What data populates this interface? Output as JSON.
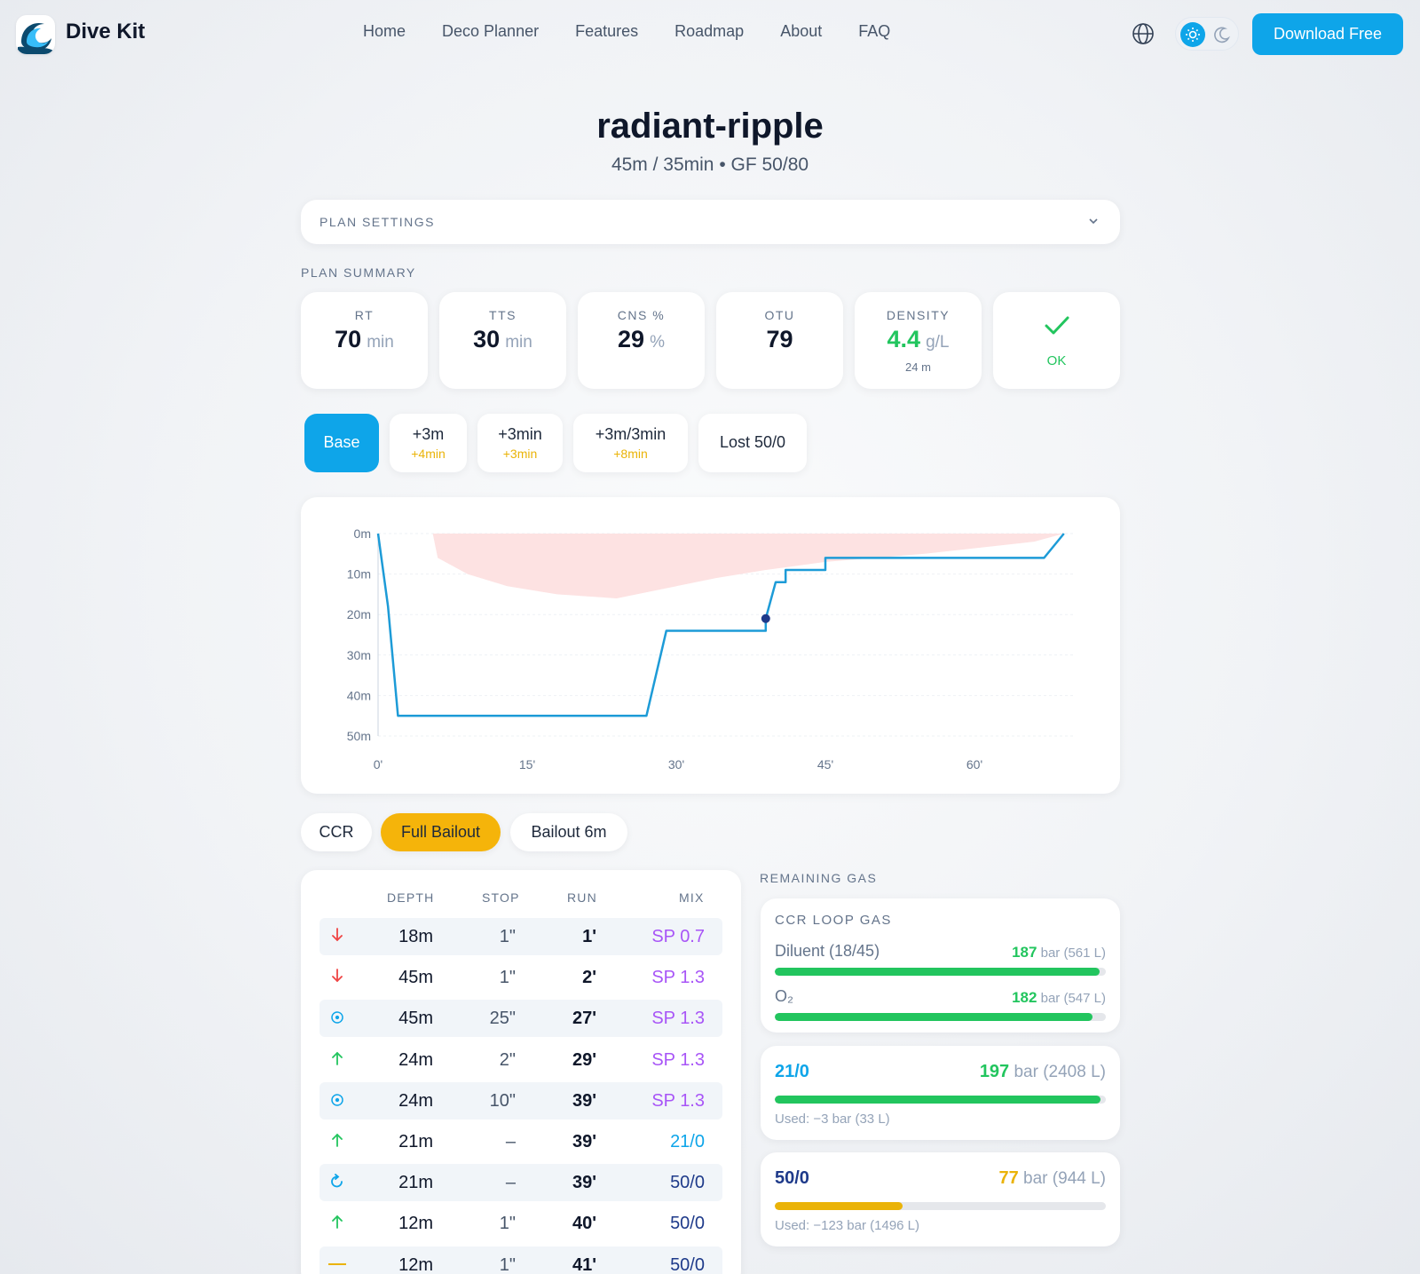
{
  "nav": {
    "brand": "Dive Kit",
    "links": [
      "Home",
      "Deco Planner",
      "Features",
      "Roadmap",
      "About",
      "FAQ"
    ],
    "download_label": "Download Free",
    "icons": {
      "language": "globe-icon",
      "light": "sun-icon",
      "dark": "moon-icon"
    }
  },
  "plan": {
    "name": "radiant-ripple",
    "subtitle": "45m / 35min • GF 50/80",
    "settings_label": "PLAN SETTINGS",
    "summary_label": "PLAN SUMMARY"
  },
  "summary": {
    "rt": {
      "label": "RT",
      "value": "70",
      "unit": "min"
    },
    "tts": {
      "label": "TTS",
      "value": "30",
      "unit": "min"
    },
    "cns": {
      "label": "CNS %",
      "value": "29",
      "unit": "%"
    },
    "otu": {
      "label": "OTU",
      "value": "79"
    },
    "density": {
      "label": "DENSITY",
      "value": "4.4",
      "unit": "g/L",
      "sub": "24 m"
    },
    "status": {
      "label": "OK",
      "icon": "check-icon"
    }
  },
  "scenarios": [
    {
      "label": "Base",
      "delta": ""
    },
    {
      "label": "+3m",
      "delta": "+4min"
    },
    {
      "label": "+3min",
      "delta": "+3min"
    },
    {
      "label": "+3m/3min",
      "delta": "+8min"
    },
    {
      "label": "Lost 50/0",
      "delta": ""
    }
  ],
  "chart_data": {
    "type": "line",
    "title": "",
    "xlabel": "",
    "ylabel": "",
    "x_ticks": [
      "0'",
      "15'",
      "30'",
      "45'",
      "60'"
    ],
    "y_ticks": [
      "0m",
      "10m",
      "20m",
      "30m",
      "40m",
      "50m"
    ],
    "xlim": [
      0,
      70
    ],
    "ylim": [
      0,
      50
    ],
    "y_inverted": true,
    "series": [
      {
        "x": [
          0,
          1,
          2,
          27,
          29,
          39,
          39,
          40,
          41,
          41,
          45,
          45,
          67,
          69
        ],
        "y": [
          0,
          18,
          45,
          45,
          24,
          24,
          21,
          12,
          12,
          9,
          9,
          6,
          6,
          0
        ],
        "color": "#1d9bd7"
      }
    ],
    "ceiling": {
      "x": [
        0,
        5.5,
        6,
        9,
        13,
        18,
        24,
        28,
        34,
        39,
        45,
        55,
        66,
        69
      ],
      "y": [
        0,
        0,
        6,
        10,
        13,
        15,
        16,
        14,
        11,
        9,
        7,
        5,
        2,
        0
      ],
      "color": "#fde2e2"
    },
    "marker": {
      "x": 39,
      "y": 21,
      "color": "#1e3a8a"
    }
  },
  "mode_tabs": [
    "CCR",
    "Full Bailout",
    "Bailout 6m"
  ],
  "mode_active": "Full Bailout",
  "table": {
    "headers": [
      "DEPTH",
      "STOP",
      "RUN",
      "MIX"
    ],
    "rows": [
      {
        "icon": "descent-arrow-icon",
        "depth": "18m",
        "stop": "1\"",
        "run": "1'",
        "mix": "SP 0.7"
      },
      {
        "icon": "descent-arrow-icon",
        "depth": "45m",
        "stop": "1\"",
        "run": "2'",
        "mix": "SP 1.3"
      },
      {
        "icon": "bottom-time-icon",
        "depth": "45m",
        "stop": "25\"",
        "run": "27'",
        "mix": "SP 1.3"
      },
      {
        "icon": "ascent-arrow-icon",
        "depth": "24m",
        "stop": "2\"",
        "run": "29'",
        "mix": "SP 1.3"
      },
      {
        "icon": "bottom-time-icon",
        "depth": "24m",
        "stop": "10\"",
        "run": "39'",
        "mix": "SP 1.3"
      },
      {
        "icon": "ascent-arrow-icon",
        "depth": "21m",
        "stop": "–",
        "run": "39'",
        "mix": "21/0"
      },
      {
        "icon": "gas-switch-icon",
        "depth": "21m",
        "stop": "–",
        "run": "39'",
        "mix": "50/0"
      },
      {
        "icon": "ascent-arrow-icon",
        "depth": "12m",
        "stop": "1\"",
        "run": "40'",
        "mix": "50/0"
      },
      {
        "icon": "level-stop-icon",
        "depth": "12m",
        "stop": "1\"",
        "run": "41'",
        "mix": "50/0"
      }
    ]
  },
  "remaining_gas": {
    "label": "REMAINING GAS",
    "ccr": {
      "title": "CCR LOOP GAS",
      "diluent": {
        "name": "Diluent (18/45)",
        "bar": "187",
        "unit": "bar",
        "liters": "(561 L)",
        "fill": 0.98
      },
      "o2": {
        "name": "O₂",
        "bar": "182",
        "unit": "bar",
        "liters": "(547 L)",
        "fill": 0.96
      }
    },
    "bailouts": [
      {
        "name": "21/0",
        "bar": "197",
        "unit": "bar",
        "liters": "(2408 L)",
        "used": "Used: −3 bar (33 L)",
        "fill": 0.985,
        "color": "#22c55e"
      },
      {
        "name": "50/0",
        "bar": "77",
        "unit": "bar",
        "liters": "(944 L)",
        "used": "Used: −123 bar (1496 L)",
        "fill": 0.385,
        "color": "#eab308"
      }
    ]
  },
  "colors": {
    "accent": "#0ea5e9",
    "ok": "#22c55e",
    "warn": "#eab308",
    "setpoint": "#a855f7",
    "mix": "#1e3a8a",
    "air": "#0ea5e9",
    "descent": "#ef4444",
    "ascent": "#22c55e"
  }
}
